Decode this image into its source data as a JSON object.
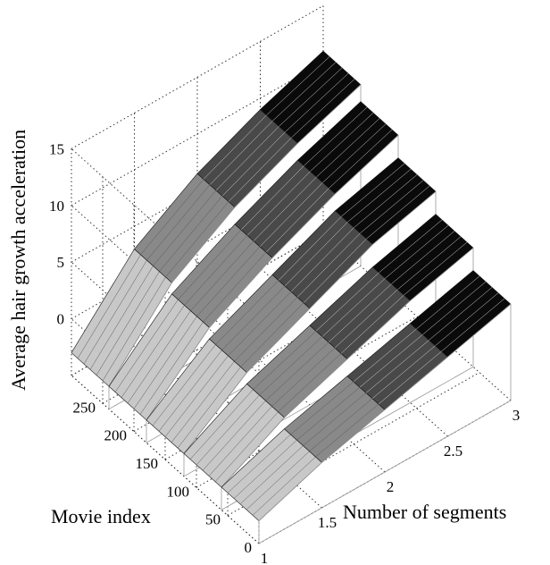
{
  "chart_data": {
    "type": "3d-mesh",
    "title": "",
    "xlabel": "Number of segments",
    "ylabel": "Movie index",
    "zlabel": "Average hair growth acceleration",
    "xlim": [
      1,
      3
    ],
    "ylim": [
      0,
      300
    ],
    "zlim": [
      -5,
      15
    ],
    "x_ticks": [
      "1",
      "1.5",
      "2",
      "2.5",
      "3"
    ],
    "y_ticks": [
      "0",
      "50",
      "100",
      "150",
      "200",
      "250"
    ],
    "z_ticks": [
      "0",
      "5",
      "10",
      "15"
    ],
    "grid": true,
    "x": [
      1,
      1.5,
      2,
      2.5,
      3
    ],
    "series": [
      {
        "y_range": [
          0,
          60
        ],
        "values": [
          -3,
          -1,
          0.5,
          2,
          3.5
        ]
      },
      {
        "y_range": [
          60,
          120
        ],
        "values": [
          -3,
          0,
          2,
          4,
          5.5
        ]
      },
      {
        "y_range": [
          120,
          180
        ],
        "values": [
          -3,
          1,
          3.5,
          6,
          7.5
        ]
      },
      {
        "y_range": [
          180,
          240
        ],
        "values": [
          -3,
          2,
          5,
          7.5,
          9.5
        ]
      },
      {
        "y_range": [
          240,
          300
        ],
        "values": [
          -3,
          3,
          6.5,
          9,
          11
        ]
      }
    ]
  }
}
